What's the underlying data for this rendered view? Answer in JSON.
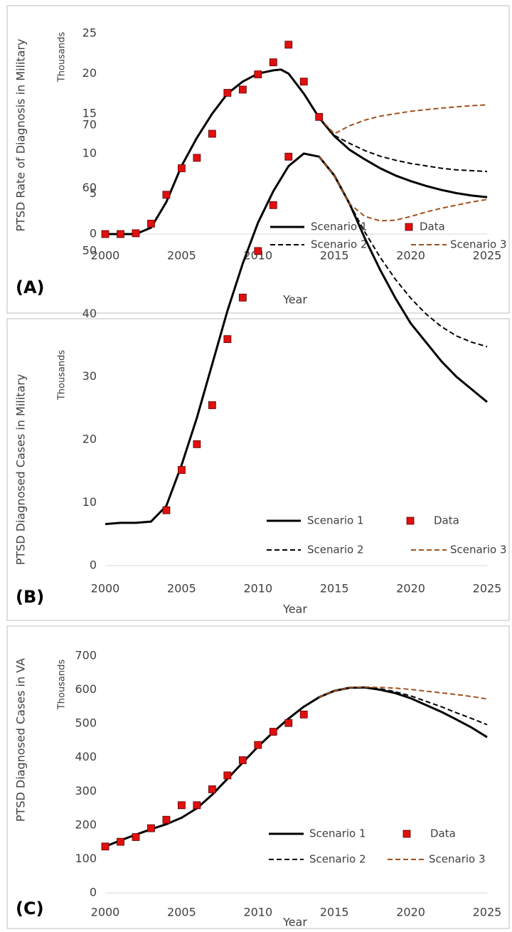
{
  "chart_data": [
    {
      "type": "line",
      "panel_label": "(A)",
      "y_label": "PTSD Rate of Diagnosis in Military",
      "y_unit": "Thousands",
      "x_label": "Year",
      "xlim": [
        2000,
        2025
      ],
      "xticks": [
        2000,
        2005,
        2010,
        2015,
        2020,
        2025
      ],
      "ylim": [
        0,
        25
      ],
      "yticks": [
        0,
        5,
        10,
        15,
        20,
        25
      ],
      "series": [
        {
          "name": "Scenario 1",
          "mode": "line",
          "line_style": "solid",
          "color": "#000000",
          "x": [
            2000,
            2001,
            2002,
            2003,
            2004,
            2005,
            2006,
            2007,
            2008,
            2009,
            2010,
            2011,
            2011.5,
            2012,
            2013,
            2014,
            2015,
            2016,
            2017,
            2018,
            2019,
            2020,
            2021,
            2022,
            2023,
            2024,
            2025
          ],
          "values": [
            0,
            0,
            0,
            0.8,
            4.0,
            8.5,
            12.0,
            15.0,
            17.5,
            19.0,
            20.0,
            20.4,
            20.5,
            20.0,
            17.5,
            14.5,
            12.2,
            10.5,
            9.3,
            8.2,
            7.3,
            6.6,
            6.0,
            5.5,
            5.1,
            4.8,
            4.6
          ]
        },
        {
          "name": "Data",
          "mode": "markers",
          "color": "#e0100f",
          "x": [
            2000,
            2001,
            2002,
            2003,
            2004,
            2005,
            2006,
            2007,
            2008,
            2009,
            2010,
            2011,
            2012,
            2013,
            2014
          ],
          "values": [
            0,
            0,
            0.1,
            1.3,
            4.9,
            8.2,
            9.5,
            12.5,
            17.6,
            18.0,
            19.9,
            21.4,
            23.6,
            19.0,
            14.6
          ]
        },
        {
          "name": "Scenario 2",
          "mode": "line",
          "line_style": "dashed",
          "color": "#000000",
          "x": [
            2014,
            2015,
            2016,
            2017,
            2018,
            2019,
            2020,
            2021,
            2022,
            2023,
            2024,
            2025
          ],
          "values": [
            14.5,
            12.3,
            11.3,
            10.4,
            9.7,
            9.2,
            8.8,
            8.5,
            8.2,
            8.0,
            7.9,
            7.8
          ]
        },
        {
          "name": "Scenario 3",
          "mode": "line",
          "line_style": "dashed",
          "color": "#a0501c",
          "x": [
            2014,
            2015,
            2016,
            2017,
            2018,
            2019,
            2020,
            2021,
            2022,
            2023,
            2024,
            2025
          ],
          "values": [
            14.5,
            12.5,
            13.5,
            14.2,
            14.7,
            15.0,
            15.3,
            15.5,
            15.7,
            15.85,
            16.0,
            16.1
          ]
        }
      ]
    },
    {
      "type": "line",
      "panel_label": "(B)",
      "y_label": "PTSD Diagnosed Cases in Military",
      "y_unit": "Thousands",
      "x_label": "Year",
      "xlim": [
        2000,
        2025
      ],
      "xticks": [
        2000,
        2005,
        2010,
        2015,
        2020,
        2025
      ],
      "ylim": [
        0,
        70
      ],
      "yticks": [
        0,
        10,
        20,
        30,
        40,
        50,
        60,
        70
      ],
      "series": [
        {
          "name": "Scenario 1",
          "mode": "line",
          "line_style": "solid",
          "color": "#000000",
          "x": [
            2000,
            2001,
            2002,
            2003,
            2004,
            2005,
            2006,
            2007,
            2008,
            2009,
            2010,
            2011,
            2012,
            2013,
            2014,
            2015,
            2016,
            2017,
            2018,
            2019,
            2020,
            2021,
            2022,
            2023,
            2024,
            2025
          ],
          "values": [
            6.6,
            6.8,
            6.8,
            7.0,
            9.5,
            16,
            23.5,
            32,
            40.5,
            48,
            54.5,
            59.5,
            63.5,
            65.5,
            65,
            62,
            57.5,
            52,
            47,
            42.5,
            38.5,
            35.5,
            32.5,
            30,
            28,
            26
          ]
        },
        {
          "name": "Data",
          "mode": "markers",
          "color": "#e0100f",
          "x": [
            2004,
            2005,
            2006,
            2007,
            2008,
            2009,
            2010,
            2011,
            2012
          ],
          "values": [
            8.8,
            15.2,
            19.3,
            25.5,
            36,
            42.6,
            50,
            57.3,
            65
          ]
        },
        {
          "name": "Scenario 2",
          "mode": "line",
          "line_style": "dashed",
          "color": "#000000",
          "x": [
            2016,
            2017,
            2018,
            2019,
            2020,
            2021,
            2022,
            2023,
            2024,
            2025
          ],
          "values": [
            57.5,
            53,
            49,
            45.5,
            42.5,
            40,
            38,
            36.5,
            35.5,
            34.8
          ]
        },
        {
          "name": "Scenario 3",
          "mode": "line",
          "line_style": "dashed",
          "color": "#a0501c",
          "x": [
            2014,
            2015,
            2016,
            2017,
            2018,
            2019,
            2020,
            2021,
            2022,
            2023,
            2024,
            2025
          ],
          "values": [
            65,
            62,
            57.5,
            55.5,
            54.8,
            54.9,
            55.5,
            56.2,
            56.8,
            57.3,
            57.8,
            58.2
          ]
        }
      ]
    },
    {
      "type": "line",
      "panel_label": "(C)",
      "y_label": "PTSD Diagnosed Cases in VA",
      "y_unit": "Thousands",
      "x_label": "Year",
      "xlim": [
        2000,
        2025
      ],
      "xticks": [
        2000,
        2005,
        2010,
        2015,
        2020,
        2025
      ],
      "ylim": [
        0,
        700
      ],
      "yticks": [
        0,
        100,
        200,
        300,
        400,
        500,
        600,
        700
      ],
      "series": [
        {
          "name": "Scenario 1",
          "mode": "line",
          "line_style": "solid",
          "color": "#000000",
          "x": [
            2000,
            2001,
            2002,
            2003,
            2004,
            2005,
            2006,
            2007,
            2008,
            2009,
            2010,
            2011,
            2012,
            2013,
            2014,
            2015,
            2016,
            2017,
            2018,
            2019,
            2020,
            2021,
            2022,
            2023,
            2024,
            2025
          ],
          "values": [
            137,
            155,
            172,
            188,
            203,
            222,
            250,
            290,
            337,
            385,
            432,
            475,
            515,
            550,
            578,
            597,
            606,
            607,
            600,
            590,
            575,
            555,
            535,
            512,
            488,
            460
          ]
        },
        {
          "name": "Data",
          "mode": "markers",
          "color": "#e0100f",
          "x": [
            2000,
            2001,
            2002,
            2003,
            2004,
            2005,
            2006,
            2007,
            2008,
            2009,
            2010,
            2011,
            2012,
            2013
          ],
          "values": [
            137,
            151,
            165,
            191,
            216,
            259,
            259,
            306,
            347,
            392,
            437,
            476,
            502,
            527
          ]
        },
        {
          "name": "Scenario 2",
          "mode": "line",
          "line_style": "dashed",
          "color": "#000000",
          "x": [
            2017,
            2018,
            2019,
            2020,
            2021,
            2022,
            2023,
            2024,
            2025
          ],
          "values": [
            607,
            603,
            594,
            582,
            566,
            550,
            532,
            515,
            497
          ]
        },
        {
          "name": "Scenario 3",
          "mode": "line",
          "line_style": "dashed",
          "color": "#a0501c",
          "x": [
            2014,
            2015,
            2016,
            2017,
            2018,
            2019,
            2020,
            2021,
            2022,
            2023,
            2024,
            2025
          ],
          "values": [
            578,
            597,
            606,
            608,
            607,
            605,
            601,
            596,
            591,
            586,
            580,
            573
          ]
        }
      ]
    }
  ]
}
